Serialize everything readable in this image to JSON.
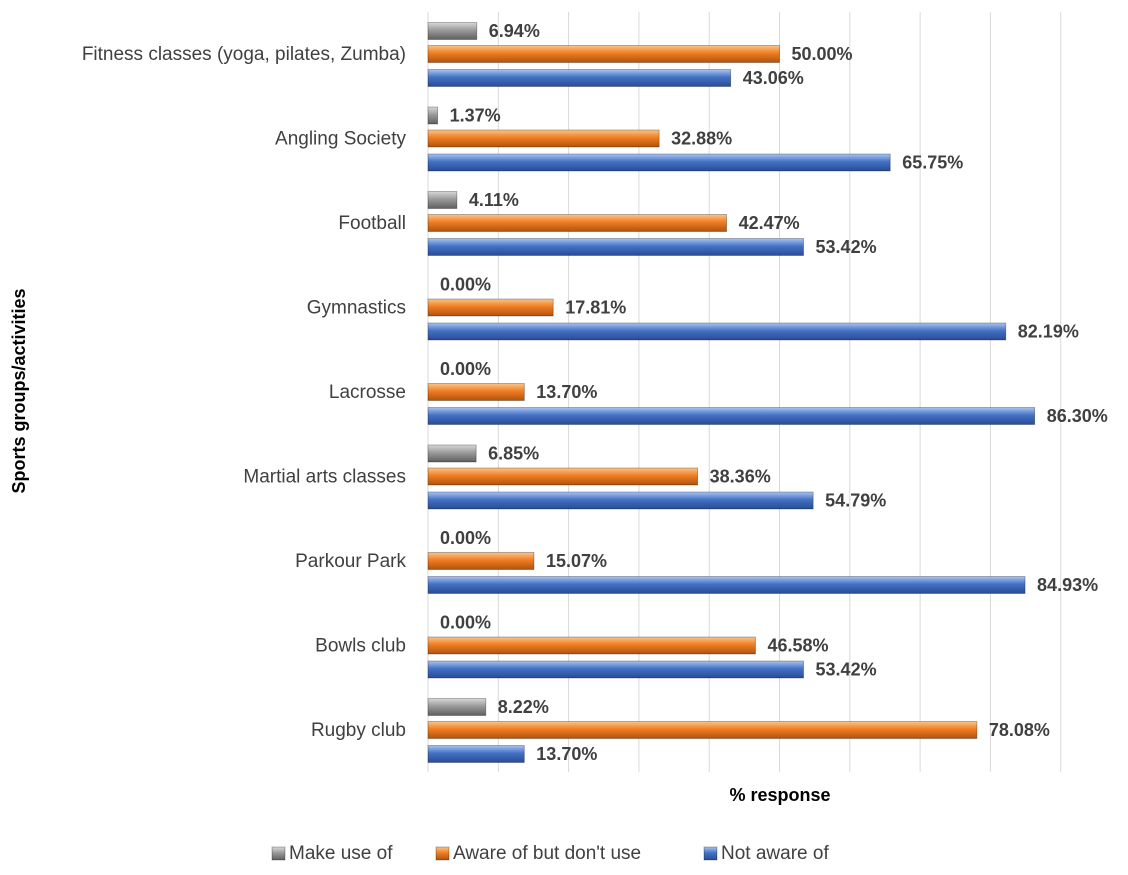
{
  "chart_data": {
    "type": "bar",
    "orientation": "horizontal",
    "xlabel": "% response",
    "ylabel": "Sports groups/activities",
    "xlim": [
      0,
      90
    ],
    "grid": true,
    "legend_position": "bottom",
    "categories": [
      "Fitness classes (yoga, pilates, Zumba)",
      "Angling Society",
      "Football",
      "Gymnastics",
      "Lacrosse",
      "Martial arts classes",
      "Parkour Park",
      "Bowls club",
      "Rugby club"
    ],
    "series": [
      {
        "name": "Make use of",
        "color": "#8c8c8c",
        "values": [
          6.94,
          1.37,
          4.11,
          0.0,
          0.0,
          6.85,
          0.0,
          0.0,
          8.22
        ],
        "labels": [
          "6.94%",
          "1.37%",
          "4.11%",
          "0.00%",
          "0.00%",
          "6.85%",
          "0.00%",
          "0.00%",
          "8.22%"
        ]
      },
      {
        "name": "Aware of but don't use",
        "color": "#e36c0a",
        "values": [
          50.0,
          32.88,
          42.47,
          17.81,
          13.7,
          38.36,
          15.07,
          46.58,
          78.08
        ],
        "labels": [
          "50.00%",
          "32.88%",
          "42.47%",
          "17.81%",
          "13.70%",
          "38.36%",
          "15.07%",
          "46.58%",
          "78.08%"
        ]
      },
      {
        "name": "Not aware of",
        "color": "#3a6bd1",
        "values": [
          43.06,
          65.75,
          53.42,
          82.19,
          86.3,
          54.79,
          84.93,
          53.42,
          13.7
        ],
        "labels": [
          "43.06%",
          "65.75%",
          "53.42%",
          "82.19%",
          "86.30%",
          "54.79%",
          "84.93%",
          "53.42%",
          "13.70%"
        ]
      }
    ]
  }
}
